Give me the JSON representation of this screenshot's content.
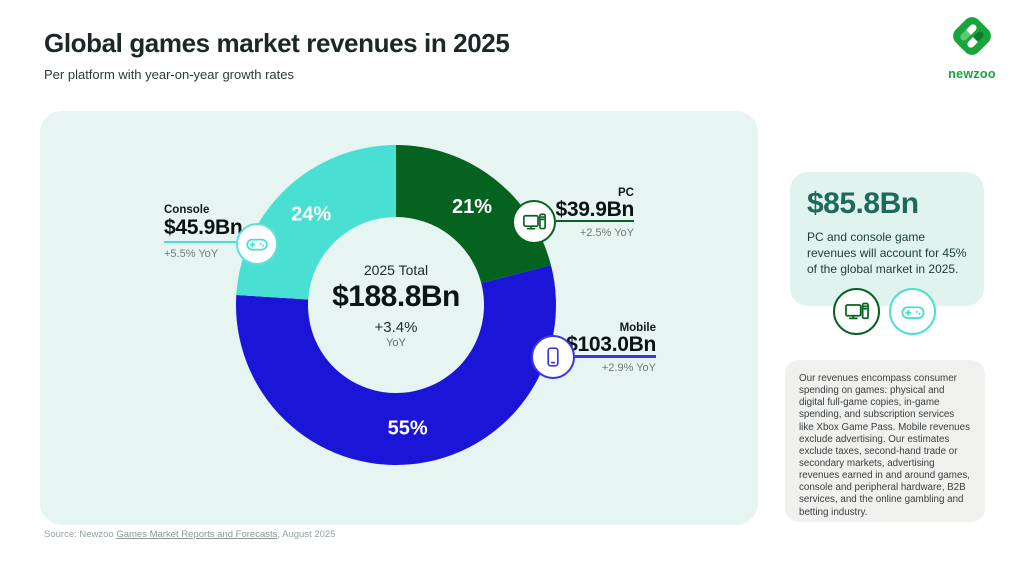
{
  "header": {
    "title": "Global games market revenues in 2025",
    "subtitle": "Per platform with year-on-year growth rates"
  },
  "logo": {
    "wordmark": "newzoo"
  },
  "colors": {
    "panel_bg": "#e6f5f2",
    "card_bg": "#e1f3ee",
    "note_bg": "#f0f0ee",
    "pc_green": "#05621f",
    "mobile_blue": "#1b15d8",
    "console_teal": "#49dfd2",
    "mobile_accent": "#3a35e4",
    "headline_teal": "#1e6a5a",
    "brand_green": "#18a53c"
  },
  "chart_data": {
    "type": "pie",
    "subtype": "donut",
    "title": "Global games market revenues in 2025",
    "subtitle": "Per platform with year-on-year growth rates",
    "start_angle_deg": 0,
    "direction": "clockwise",
    "center": {
      "label": "2025 Total",
      "total": "$188.8Bn",
      "yoy": "+3.4%",
      "yoy_unit": "YoY"
    },
    "series": [
      {
        "name": "PC",
        "display_value": "$39.9Bn",
        "value_bn": 39.9,
        "share_pct": 21,
        "yoy": "+2.5% YoY",
        "color": "#05621f",
        "icon": "desktop-icon"
      },
      {
        "name": "Mobile",
        "display_value": "$103.0Bn",
        "value_bn": 103.0,
        "share_pct": 55,
        "yoy": "+2.9% YoY",
        "color": "#1b15d8",
        "icon": "smartphone-icon"
      },
      {
        "name": "Console",
        "display_value": "$45.9Bn",
        "value_bn": 45.9,
        "share_pct": 24,
        "yoy": "+5.5% YoY",
        "color": "#49dfd2",
        "icon": "gamepad-icon"
      }
    ]
  },
  "highlight_card": {
    "value": "$85.8Bn",
    "text": "PC and console game revenues will account for 45% of the global market in 2025."
  },
  "note_box": {
    "text": "Our revenues encompass consumer spending on games: physical and digital full-game copies, in-game spending, and subscription services like Xbox Game Pass. Mobile revenues exclude advertising. Our estimates exclude taxes, second-hand trade or secondary markets, advertising revenues earned in and around games, console and peripheral hardware, B2B services, and the online gambling and betting industry."
  },
  "footer": {
    "prefix": "Source: Newzoo ",
    "link": "Games Market Reports and Forecasts",
    "suffix": ", August 2025"
  }
}
